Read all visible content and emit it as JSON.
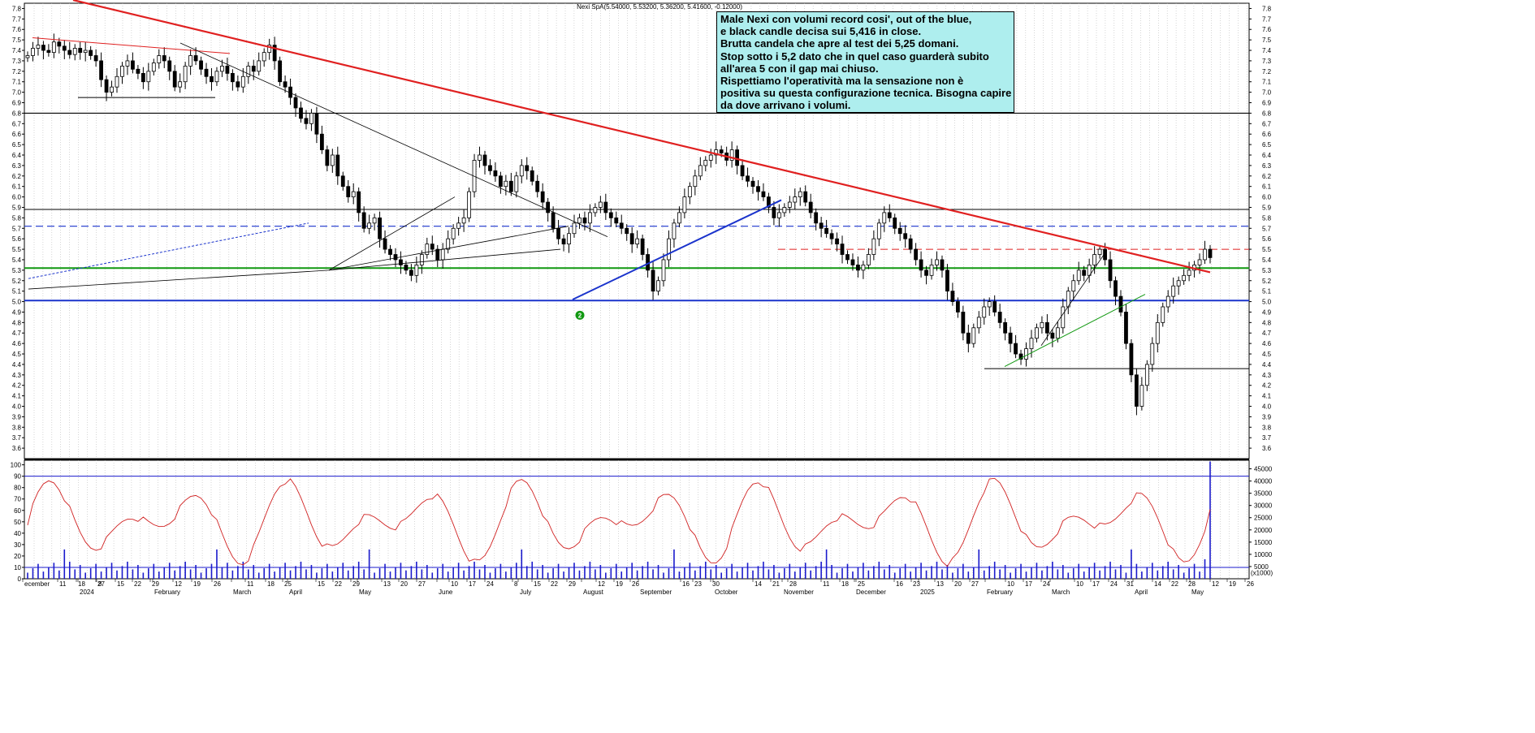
{
  "chart_data": [
    {
      "type": "candlestick",
      "title": "Nexi SpA(5.54000, 5.53200, 5.36200, 5.41600, -0.12000)",
      "ylim": [
        3.5,
        7.85
      ],
      "y_ticks": [
        3.6,
        3.7,
        3.8,
        3.9,
        4.0,
        4.1,
        4.2,
        4.3,
        4.4,
        4.5,
        4.6,
        4.7,
        4.8,
        4.9,
        5.0,
        5.1,
        5.2,
        5.3,
        5.4,
        5.5,
        5.6,
        5.7,
        5.8,
        5.9,
        6.0,
        6.1,
        6.2,
        6.3,
        6.4,
        6.5,
        6.6,
        6.7,
        6.8,
        6.9,
        7.0,
        7.1,
        7.2,
        7.3,
        7.4,
        7.5,
        7.6,
        7.7,
        7.8
      ],
      "y_tick_labels": [
        "3.6",
        "3.7",
        "3.8",
        "3.9",
        "4.0",
        "4.1",
        "4.2",
        "4.3",
        "4.4",
        "4.5",
        "4.6",
        "4.7",
        "4.8",
        "4.9",
        "5.0",
        "5.1",
        "5.2",
        "5.3",
        "5.4",
        "5.5",
        "5.6",
        "5.7",
        "5.8",
        "5.9",
        "6.0",
        "6.1",
        "6.2",
        "6.3",
        "6.4",
        "6.5",
        "6.6",
        "6.7",
        "6.8",
        "6.9",
        "7.0",
        "7.1",
        "7.2",
        "7.3",
        "7.4",
        "7.5",
        "7.6",
        "7.7",
        "7.8"
      ],
      "candles_note": "Approximate daily closes read from chart, Dec 2023 - May 2025",
      "closes": [
        7.35,
        7.42,
        7.45,
        7.4,
        7.38,
        7.48,
        7.44,
        7.4,
        7.36,
        7.42,
        7.38,
        7.4,
        7.35,
        7.3,
        7.12,
        7.0,
        7.05,
        7.15,
        7.25,
        7.3,
        7.22,
        7.18,
        7.1,
        7.2,
        7.28,
        7.35,
        7.3,
        7.2,
        7.05,
        7.1,
        7.25,
        7.35,
        7.3,
        7.22,
        7.15,
        7.1,
        7.2,
        7.25,
        7.18,
        7.1,
        7.05,
        7.15,
        7.25,
        7.2,
        7.3,
        7.38,
        7.45,
        7.3,
        7.1,
        7.05,
        6.95,
        6.85,
        6.75,
        6.7,
        6.8,
        6.6,
        6.45,
        6.3,
        6.4,
        6.2,
        6.1,
        6.0,
        6.05,
        5.85,
        5.7,
        5.75,
        5.8,
        5.6,
        5.5,
        5.45,
        5.4,
        5.35,
        5.3,
        5.25,
        5.35,
        5.45,
        5.55,
        5.5,
        5.4,
        5.5,
        5.6,
        5.7,
        5.75,
        5.8,
        6.05,
        6.35,
        6.4,
        6.3,
        6.25,
        6.2,
        6.1,
        6.15,
        6.05,
        6.2,
        6.3,
        6.25,
        6.15,
        6.05,
        5.95,
        5.85,
        5.7,
        5.6,
        5.55,
        5.65,
        5.75,
        5.8,
        5.75,
        5.85,
        5.9,
        5.95,
        5.85,
        5.8,
        5.75,
        5.7,
        5.65,
        5.55,
        5.6,
        5.45,
        5.3,
        5.1,
        5.2,
        5.4,
        5.6,
        5.75,
        5.85,
        6.0,
        6.1,
        6.2,
        6.3,
        6.35,
        6.4,
        6.45,
        6.42,
        6.35,
        6.45,
        6.3,
        6.2,
        6.15,
        6.1,
        6.05,
        6.0,
        5.9,
        5.8,
        5.85,
        5.9,
        5.95,
        6.0,
        6.05,
        5.95,
        5.85,
        5.75,
        5.7,
        5.65,
        5.6,
        5.55,
        5.45,
        5.4,
        5.35,
        5.3,
        5.35,
        5.45,
        5.6,
        5.75,
        5.85,
        5.8,
        5.7,
        5.65,
        5.6,
        5.5,
        5.4,
        5.3,
        5.25,
        5.35,
        5.4,
        5.3,
        5.1,
        5.0,
        4.9,
        4.7,
        4.6,
        4.75,
        4.85,
        4.95,
        5.0,
        4.9,
        4.8,
        4.7,
        4.6,
        4.5,
        4.45,
        4.55,
        4.65,
        4.75,
        4.8,
        4.7,
        4.65,
        4.75,
        4.95,
        5.1,
        5.2,
        5.3,
        5.25,
        5.35,
        5.45,
        5.5,
        5.4,
        5.2,
        5.05,
        4.9,
        4.6,
        4.3,
        4.0,
        4.2,
        4.4,
        4.6,
        4.8,
        4.95,
        5.05,
        5.15,
        5.2,
        5.25,
        5.3,
        5.35,
        5.4,
        5.5,
        5.42
      ],
      "horizontal_lines": [
        6.8,
        5.88,
        5.72,
        5.5,
        5.32,
        5.01,
        4.36,
        6.95
      ],
      "marker_label": "2"
    },
    {
      "type": "bar+line",
      "description_series": [
        "volume",
        "oscillator"
      ],
      "left_ticks": [
        0,
        10,
        20,
        30,
        40,
        50,
        60,
        70,
        80,
        90,
        100
      ],
      "left_tick_labels": [
        "0",
        "10",
        "20",
        "30",
        "40",
        "50",
        "60",
        "70",
        "80",
        "90",
        "100"
      ],
      "right_ticks": [
        5000,
        10000,
        15000,
        20000,
        25000,
        30000,
        35000,
        40000,
        45000
      ],
      "right_tick_labels": [
        "5000",
        "10000",
        "15000",
        "20000",
        "25000",
        "30000",
        "35000",
        "40000",
        "45000"
      ],
      "right_unit_label": "(x1000)",
      "oscillator_levels": [
        10,
        90
      ]
    }
  ],
  "x_axis": {
    "labels": [
      "ecember",
      "11",
      "18",
      "27",
      "2024",
      "8",
      "15",
      "22",
      "29",
      "February",
      "12",
      "19",
      "26",
      "March",
      "11",
      "18",
      "25",
      "April",
      "15",
      "22",
      "29",
      "May",
      "13",
      "20",
      "27",
      "June",
      "10",
      "17",
      "24",
      "July",
      "8",
      "15",
      "22",
      "29",
      "August",
      "12",
      "19",
      "26",
      "September",
      "16",
      "23",
      "30",
      "October",
      "14",
      "21",
      "28",
      "November",
      "11",
      "18",
      "25",
      "December",
      "16",
      "23",
      "2025",
      "13",
      "20",
      "27",
      "February",
      "10",
      "17",
      "24",
      "March",
      "10",
      "17",
      "24",
      "31",
      "April",
      "14",
      "22",
      "28",
      "May",
      "12",
      "19",
      "26"
    ],
    "label_x": [
      30,
      73,
      96,
      120,
      98,
      121,
      144,
      165,
      187,
      190,
      215,
      238,
      263,
      287,
      304,
      329,
      350,
      356,
      391,
      412,
      434,
      442,
      472,
      493,
      515,
      540,
      555,
      577,
      599,
      640,
      633,
      657,
      678,
      700,
      718,
      736,
      758,
      778,
      788,
      840,
      855,
      877,
      880,
      929,
      951,
      972,
      965,
      1013,
      1036,
      1056,
      1054,
      1103,
      1124,
      1133,
      1153,
      1175,
      1196,
      1215,
      1240,
      1262,
      1284,
      1295,
      1325,
      1345,
      1367,
      1387,
      1397,
      1421,
      1442,
      1463,
      1467,
      1492,
      1513,
      1535
    ],
    "label_row": [
      1,
      1,
      1,
      1,
      2,
      1,
      1,
      1,
      1,
      2,
      1,
      1,
      1,
      2,
      1,
      1,
      1,
      2,
      1,
      1,
      1,
      2,
      1,
      1,
      1,
      2,
      1,
      1,
      1,
      2,
      1,
      1,
      1,
      1,
      2,
      1,
      1,
      1,
      2,
      1,
      1,
      1,
      2,
      1,
      1,
      1,
      2,
      1,
      1,
      1,
      2,
      1,
      1,
      2,
      1,
      1,
      1,
      2,
      1,
      1,
      1,
      2,
      1,
      1,
      1,
      1,
      2,
      1,
      1,
      1,
      2,
      1,
      1,
      1
    ]
  },
  "annotation": {
    "lines": [
      "Male Nexi con volumi record cosi', out of the blue,",
      "e black candle decisa sui 5,416 in close.",
      "Brutta candela che apre al test dei 5,25 domani.",
      "Stop sotto i 5,2 dato che in quel caso guarderà subito",
      "all'area 5 con il gap mai chiuso.",
      "Rispettiamo l'operatività ma la sensazione non è",
      "positiva su questa configurazione tecnica. Bisogna capire",
      "da dove arrivano i volumi."
    ]
  },
  "colors": {
    "red_trend": "#e02020",
    "blue_trend": "#1a33cc",
    "green_line": "#119911",
    "candle_up": "#ffffff",
    "candle_down": "#000000",
    "oscillator": "#d02020",
    "volume": "#1a1acc",
    "note_bg": "#aeeeee"
  }
}
